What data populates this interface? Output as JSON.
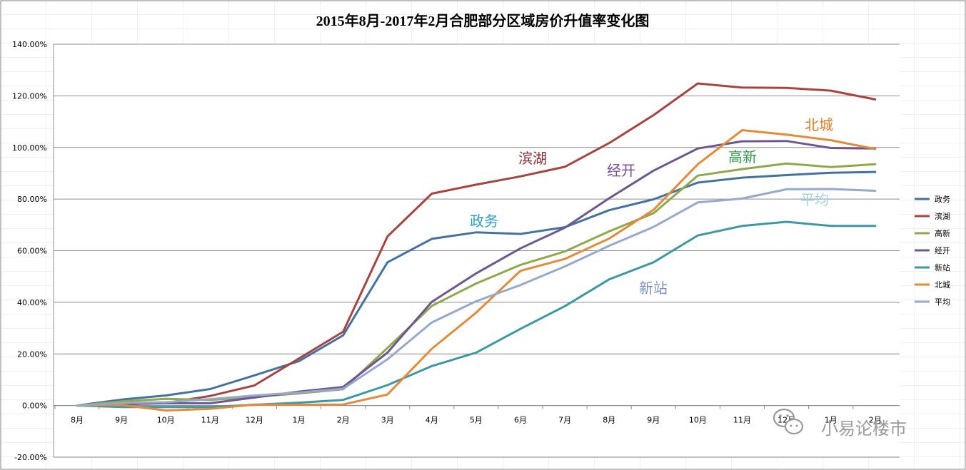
{
  "chart_data": {
    "type": "line",
    "title": "2015年8月-2017年2月合肥部分区域房价升值率变化图",
    "xlabel": "",
    "ylabel": "",
    "categories": [
      "8月",
      "9月",
      "10月",
      "11月",
      "12月",
      "1月",
      "2月",
      "3月",
      "4月",
      "5月",
      "6月",
      "7月",
      "8月",
      "9月",
      "10月",
      "11月",
      "12月",
      "1月",
      "2月"
    ],
    "ylim": [
      -20,
      140
    ],
    "yticks": [
      "-20.00%",
      "0.00%",
      "20.00%",
      "40.00%",
      "60.00%",
      "80.00%",
      "100.00%",
      "120.00%",
      "140.00%"
    ],
    "ytick_values": [
      -20,
      0,
      20,
      40,
      60,
      80,
      100,
      120,
      140
    ],
    "grid": true,
    "legend": "right",
    "series": [
      {
        "name": "政务",
        "color": "#4472a0",
        "values": [
          0,
          2.3,
          3.9,
          6.4,
          11.7,
          17.2,
          27.2,
          55.5,
          64.6,
          67.1,
          66.5,
          69.1,
          75.7,
          79.9,
          86.4,
          88.3,
          89.3,
          90.2,
          90.5
        ]
      },
      {
        "name": "滨湖",
        "color": "#a8443f",
        "values": [
          0,
          0.5,
          1.0,
          3.7,
          7.8,
          18.2,
          28.6,
          65.5,
          82.1,
          85.6,
          88.8,
          92.5,
          101.7,
          112.5,
          124.8,
          123.2,
          123.1,
          122.0,
          118.6
        ]
      },
      {
        "name": "高新",
        "color": "#8ea94a",
        "values": [
          0,
          1.6,
          2.6,
          2.2,
          3.3,
          4.7,
          6.3,
          22.3,
          38.6,
          47.3,
          54.5,
          59.7,
          67.5,
          74.5,
          89.1,
          91.6,
          93.8,
          92.4,
          93.5
        ]
      },
      {
        "name": "经开",
        "color": "#6e5691",
        "values": [
          0,
          0.5,
          0.9,
          0.9,
          3.1,
          5.4,
          7.2,
          20.5,
          40.2,
          51.2,
          60.9,
          68.9,
          80.3,
          91.0,
          99.6,
          102.4,
          102.5,
          99.8,
          99.6
        ]
      },
      {
        "name": "新站",
        "color": "#3d98a6",
        "values": [
          0,
          -0.6,
          -0.6,
          -0.6,
          0.3,
          1.1,
          2.2,
          7.9,
          15.3,
          20.5,
          29.7,
          38.5,
          48.9,
          55.5,
          65.9,
          69.6,
          71.2,
          69.6,
          69.6
        ]
      },
      {
        "name": "北城",
        "color": "#e28b39",
        "values": [
          0,
          0.2,
          -1.9,
          -1.3,
          0.4,
          0.3,
          0.4,
          4.3,
          22.0,
          36.0,
          52.2,
          56.8,
          64.7,
          75.8,
          93.5,
          106.7,
          105.0,
          102.8,
          99.4
        ]
      },
      {
        "name": "平均",
        "color": "#95a9cd",
        "values": [
          0,
          1.0,
          1.3,
          2.5,
          3.9,
          5.0,
          6.5,
          17.9,
          32.2,
          40.4,
          46.7,
          53.9,
          61.9,
          69.2,
          78.7,
          80.2,
          83.8,
          83.9,
          83.2
        ]
      }
    ],
    "annotations": [
      {
        "text": "滨湖",
        "color": "#8b2a32"
      },
      {
        "text": "经开",
        "color": "#7a4d98"
      },
      {
        "text": "政务",
        "color": "#2aa0c8"
      },
      {
        "text": "北城",
        "color": "#e07a1e"
      },
      {
        "text": "高新",
        "color": "#2e9a44"
      },
      {
        "text": "平均",
        "color": "#9fd3e2"
      },
      {
        "text": "新站",
        "color": "#7d8fbf"
      }
    ]
  },
  "watermark": {
    "text": "小易论楼市",
    "icon": "wechat-icon"
  }
}
